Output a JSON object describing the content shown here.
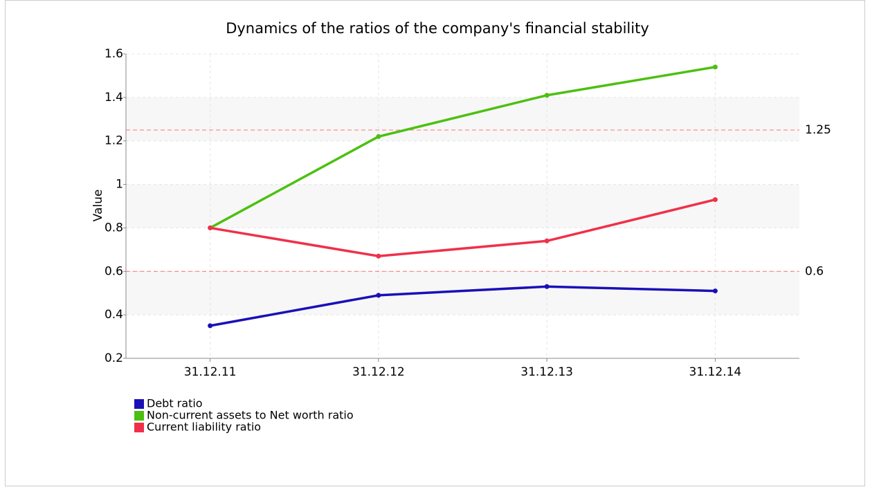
{
  "chart_data": {
    "type": "line",
    "title": "Dynamics of the ratios of the company's financial stability",
    "y_label": "Value",
    "categories": [
      "31.12.11",
      "31.12.12",
      "31.12.13",
      "31.12.14"
    ],
    "series": [
      {
        "name": "Debt ratio",
        "color": "#1a10b8",
        "values": [
          0.35,
          0.49,
          0.53,
          0.51
        ]
      },
      {
        "name": "Non-current assets to Net worth ratio",
        "color": "#4cc010",
        "values": [
          0.8,
          1.22,
          1.41,
          1.54
        ]
      },
      {
        "name": "Current liability ratio",
        "color": "#f0304a",
        "values": [
          0.8,
          0.67,
          0.74,
          0.93
        ]
      }
    ],
    "ylim": [
      0.2,
      1.6
    ],
    "yticks": [
      0.2,
      0.4,
      0.6,
      0.8,
      1,
      1.2,
      1.4,
      1.6
    ],
    "reference_lines": [
      1.25,
      0.6
    ],
    "reference_color": "#ff2020",
    "grid": true
  }
}
